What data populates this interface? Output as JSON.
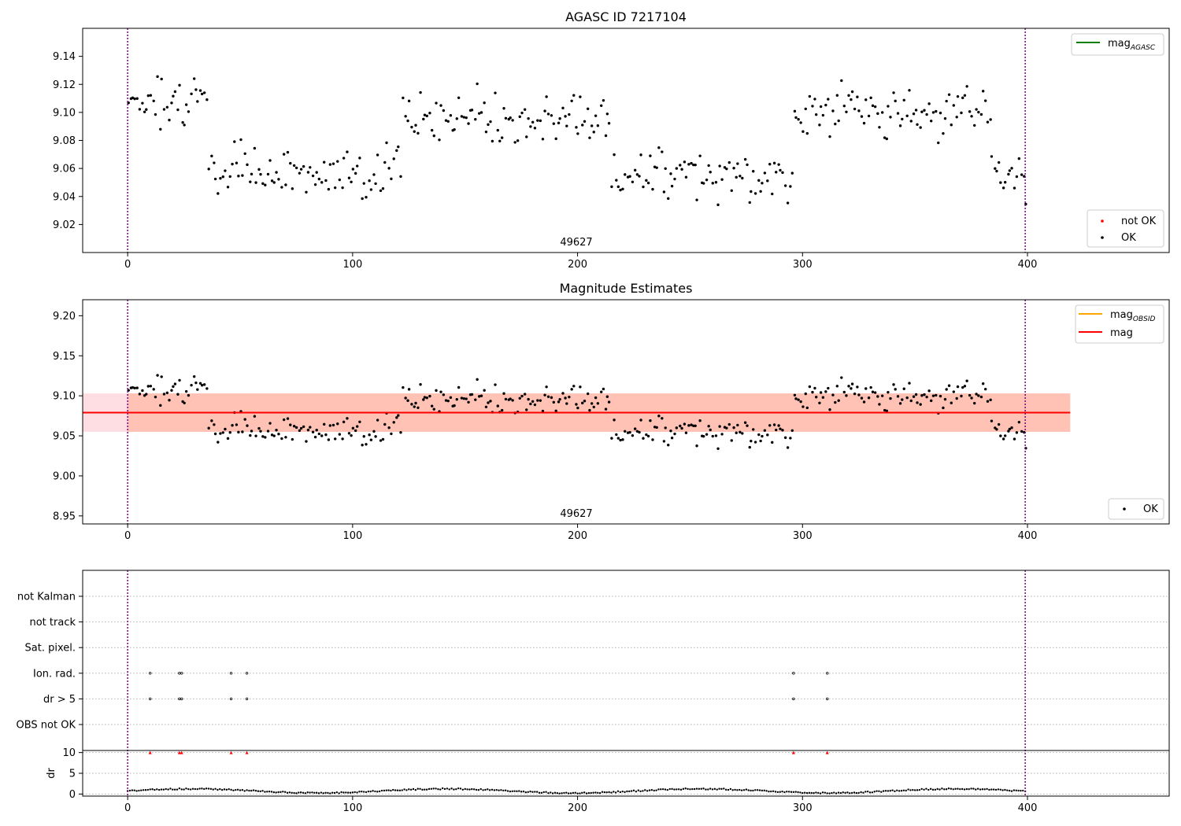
{
  "colors": {
    "ok": "#000000",
    "not_ok": "#ff0000",
    "mag_agasc": "#008000",
    "mag_obsid": "#ffa500",
    "mag": "#ff0000",
    "band_obsid": "#ffa07a",
    "band_mag": "#ffb6c1",
    "obs_boundary": "#800080",
    "grid": "#b0b0b0"
  },
  "chart_data": [
    {
      "type": "scatter",
      "title": "AGASC ID 7217104",
      "xlim": [
        -20,
        463
      ],
      "ylim": [
        9.0,
        9.16
      ],
      "xticks": [
        0,
        100,
        200,
        300,
        400
      ],
      "yticks": [
        9.02,
        9.04,
        9.06,
        9.08,
        9.1,
        9.12,
        9.14
      ],
      "ytick_labels": [
        "9.02",
        "9.04",
        "9.06",
        "9.08",
        "9.10",
        "9.12",
        "9.14"
      ],
      "obs_boundaries": [
        0,
        399
      ],
      "obsid_label": {
        "text": "49627",
        "x": 199
      },
      "legend_lines": [
        {
          "label_main": "mag",
          "label_sub": "AGASC",
          "color": "mag_agasc"
        }
      ],
      "legend_points": [
        {
          "label": "not OK",
          "color": "not_ok"
        },
        {
          "label": "OK",
          "color": "ok"
        }
      ]
    },
    {
      "type": "scatter",
      "title": "Magnitude Estimates",
      "xlim": [
        -20,
        463
      ],
      "ylim": [
        8.94,
        9.22
      ],
      "xticks": [
        0,
        100,
        200,
        300,
        400
      ],
      "yticks": [
        8.95,
        9.0,
        9.05,
        9.1,
        9.15,
        9.2
      ],
      "ytick_labels": [
        "8.95",
        "9.00",
        "9.05",
        "9.10",
        "9.15",
        "9.20"
      ],
      "obs_boundaries": [
        0,
        399
      ],
      "obsid_label": {
        "text": "49627",
        "x": 199
      },
      "mag_line": {
        "value": 9.079,
        "x": [
          -20,
          419
        ]
      },
      "mag_band": {
        "low": 9.055,
        "high": 9.103,
        "x": [
          -20,
          419
        ]
      },
      "obsid_band": {
        "low": 9.055,
        "high": 9.103,
        "x": [
          0,
          419
        ]
      },
      "legend_lines": [
        {
          "label_main": "mag",
          "label_sub": "OBSID",
          "color": "mag_obsid"
        },
        {
          "label_main": "mag",
          "label_sub": "",
          "color": "mag"
        }
      ],
      "legend_points": [
        {
          "label": "OK",
          "color": "ok"
        }
      ]
    },
    {
      "type": "scatter",
      "title": "",
      "xlim": [
        -20,
        463
      ],
      "xticks": [
        0,
        100,
        200,
        300,
        400
      ],
      "obs_boundaries": [
        0,
        399
      ],
      "flag_categories": [
        "not Kalman",
        "not track",
        "Sat. pixel.",
        "Ion. rad.",
        "dr > 5",
        "OBS not OK"
      ],
      "flag_points": {
        "Ion. rad.": [
          10,
          23,
          24,
          46,
          53,
          296,
          311
        ],
        "dr > 5": [
          10,
          23,
          24,
          46,
          53,
          296,
          311
        ]
      },
      "dr": {
        "ylabel": "dr",
        "ylim": [
          -0.5,
          10.5
        ],
        "yticks": [
          0,
          5,
          10
        ],
        "ytick_labels": [
          "0",
          "5",
          "10"
        ],
        "high_points": [
          10,
          23,
          24,
          46,
          53,
          296,
          311
        ],
        "high_value": 10
      }
    }
  ]
}
